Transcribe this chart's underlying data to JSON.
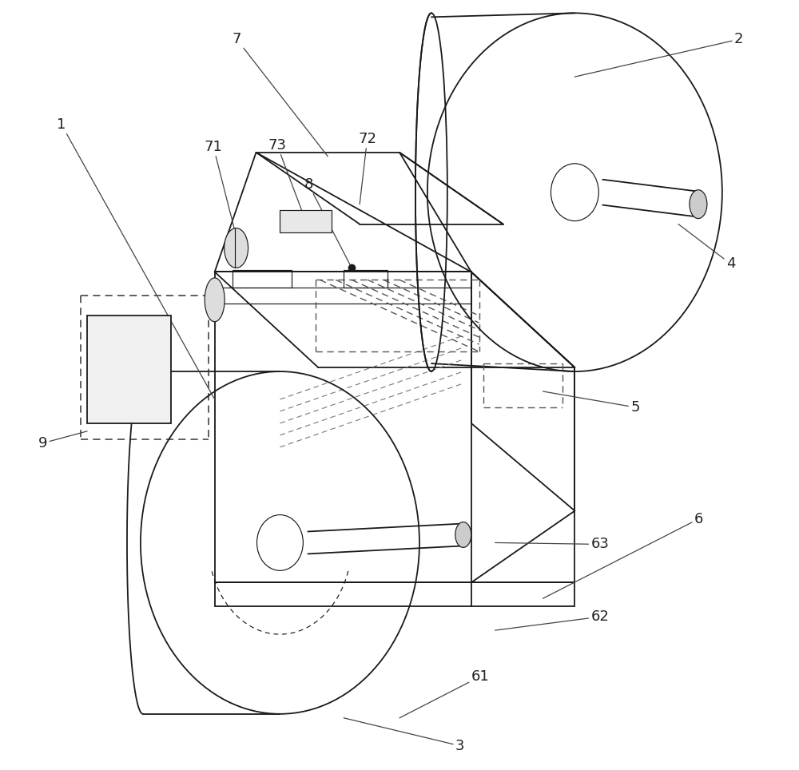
{
  "bg_color": "#ffffff",
  "line_color": "#1a1a1a",
  "lw_main": 1.3,
  "lw_thin": 0.85,
  "figsize": [
    10.0,
    9.64
  ],
  "dpi": 100
}
